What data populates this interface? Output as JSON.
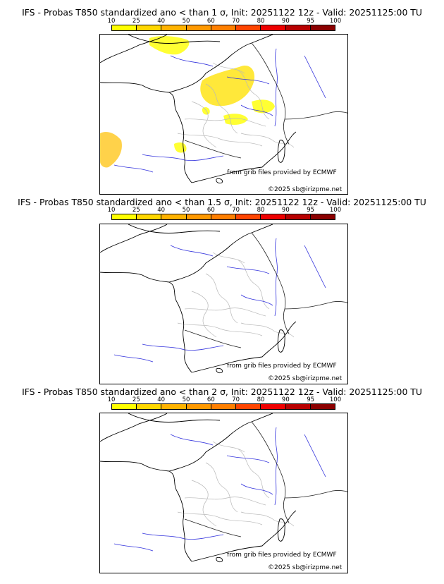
{
  "colorbar": {
    "ticks": [
      "10",
      "25",
      "40",
      "50",
      "60",
      "70",
      "80",
      "90",
      "95",
      "100"
    ],
    "colors": [
      "#ffff00",
      "#ffd700",
      "#ffb300",
      "#ff9900",
      "#ff7f00",
      "#ff4500",
      "#ee0000",
      "#b80000",
      "#8b0000"
    ]
  },
  "panels": [
    {
      "title": "IFS - Probas T850  standardized ano < than 1 σ, Init: 20251122 12z - Valid: 20251125:00 TU",
      "source": "from grib files provided by ECMWF",
      "copyright": "©2025 sb@irizpme.net"
    },
    {
      "title": "IFS - Probas T850  standardized ano < than 1.5 σ, Init: 20251122 12z - Valid: 20251125:00 TU",
      "source": "from grib files provided by ECMWF",
      "copyright": "©2025 sb@irizpme.net"
    },
    {
      "title": "IFS - Probas T850  standardized ano < than 2 σ, Init: 20251122 12z - Valid: 20251125:00 TU",
      "source": "from grib files provided by ECMWF",
      "copyright": "©2025 sb@irizpme.net"
    }
  ]
}
